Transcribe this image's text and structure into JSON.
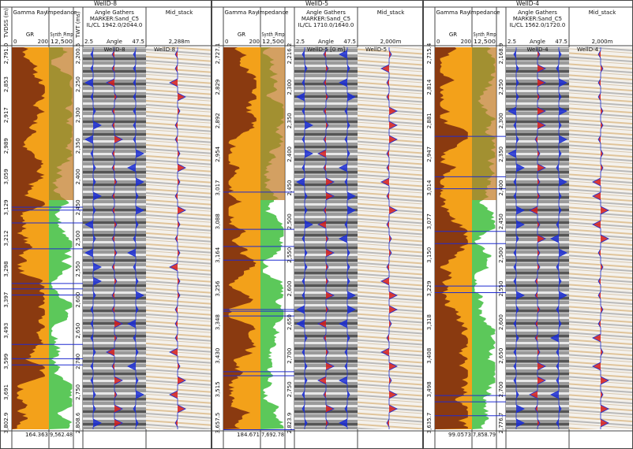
{
  "panels": [
    {
      "well": "WellD-8",
      "gr_title": "Gamma Ray",
      "imp_title": "Impedance",
      "angle_title": "Angle Gathers",
      "marker": "MARKER:Sand_C5",
      "ilcl": "IL/CL 1942.0/2044.0",
      "mid_title": "Mid_stack",
      "depth_label": "TVDSS (m)",
      "twt_label": "TWT (ms)",
      "gr_curve": "GR",
      "imp_curve": "Synth_Pimp",
      "gr_min": "0",
      "gr_max": "200",
      "imp_max": "12,500",
      "angle_min": "2.5",
      "angle_axis": "Angle",
      "angle_max": "47.5",
      "mid_offset": "2,288m",
      "angle_well_label": "WellD-8",
      "mid_well_label": "WellD-8",
      "depth_ticks": [
        "2,791.0",
        "2,853",
        "2,917",
        "2,989",
        "3,059",
        "3,129",
        "3,212",
        "3,298",
        "3,397",
        "3,493",
        "3,599",
        "3,691",
        "3,802.9"
      ],
      "twt_ticks": [
        "2,200.5",
        "2,250",
        "2,300",
        "2,350",
        "2,400",
        "2,450",
        "2,500",
        "2,550",
        "2,600",
        "2,650",
        "2,700",
        "2,750",
        "2,808.6"
      ],
      "gr_bottom": "164.363",
      "imp_bottom": "9,562.48"
    },
    {
      "well": "WellD-5",
      "gr_title": "Gamma Ray",
      "imp_title": "Impedance",
      "angle_title": "Angle Gathers",
      "marker": "MARKER:Sand_C5",
      "ilcl": "IL/CL 1710.0/1640.0",
      "mid_title": "Mid_stack",
      "depth_label": "TVDSS (m)",
      "twt_label": "TWT (ms)",
      "gr_curve": "GR",
      "imp_curve": "Synth_Pimp",
      "gr_min": "0",
      "gr_max": "200",
      "imp_max": "12,500",
      "angle_min": "2.5",
      "angle_axis": "Angle",
      "angle_max": "47.5",
      "mid_offset": "2,000m",
      "angle_well_label": "WellD-5 [0 m]",
      "mid_well_label": "WellD-5",
      "depth_ticks": [
        "2,727.1",
        "2,829",
        "2,892",
        "2,954",
        "3,017",
        "3,088",
        "3,164",
        "3,256",
        "3,348",
        "3,430",
        "3,515",
        "3,657.5"
      ],
      "twt_ticks": [
        "2,216.2",
        "2,300",
        "2,350",
        "2,400",
        "2,450",
        "2,500",
        "2,550",
        "2,600",
        "2,650",
        "2,700",
        "2,750",
        "2,823.9"
      ],
      "gr_bottom": "184.671",
      "imp_bottom": "7,692.78"
    },
    {
      "well": "WellD-4",
      "gr_title": "Gamma Ray",
      "imp_title": "Impedance",
      "angle_title": "Angle Gathers",
      "marker": "MARKER:Sand_C5",
      "ilcl": "IL/CL 1562.0/1720.0",
      "mid_title": "Mid_stack",
      "depth_label": "TVDSS (m)",
      "twt_label": "TWT (ms)",
      "gr_curve": "GR",
      "imp_curve": "Synth_Pimp",
      "gr_min": "0",
      "gr_max": "200",
      "imp_max": "12,500",
      "angle_min": "2.5",
      "angle_axis": "Angle",
      "angle_max": "47.5",
      "mid_offset": "2,000m",
      "angle_well_label": "WellD-4",
      "mid_well_label": "WellD-4",
      "depth_ticks": [
        "2,715.4",
        "2,814",
        "2,881",
        "2,947",
        "3,014",
        "3,077",
        "3,150",
        "3,229",
        "3,318",
        "3,408",
        "3,498",
        "3,635.7"
      ],
      "twt_ticks": [
        "2,168.9",
        "2,250",
        "2,300",
        "2,350",
        "2,400",
        "2,450",
        "2,500",
        "2,550",
        "2,600",
        "2,650",
        "2,700",
        "2,776.7"
      ],
      "gr_bottom": "99.0573",
      "imp_bottom": "7,858.79"
    }
  ]
}
